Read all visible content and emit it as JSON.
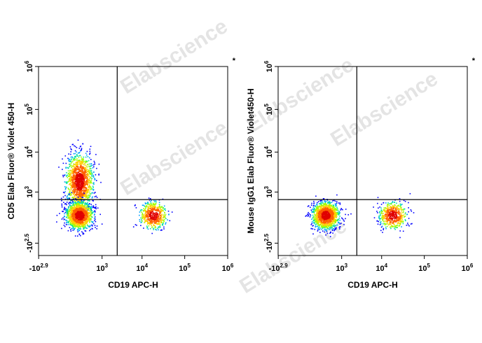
{
  "chart_data": [
    {
      "type": "scatter",
      "title": "",
      "xlabel": "CD19 APC-H",
      "ylabel": "CD5 Elab Fluor® Violet 450-H",
      "corner_mark": "*",
      "x_scale": "biexponential",
      "y_scale": "biexponential",
      "x_ticks": [
        {
          "base": "-10",
          "exp": "2.9"
        },
        {
          "base": "10",
          "exp": "3"
        },
        {
          "base": "10",
          "exp": "4"
        },
        {
          "base": "10",
          "exp": "5"
        },
        {
          "base": "10",
          "exp": "6"
        }
      ],
      "y_ticks": [
        {
          "base": "-10",
          "exp": "2.5"
        },
        {
          "base": "10",
          "exp": "3"
        },
        {
          "base": "10",
          "exp": "4"
        },
        {
          "base": "10",
          "exp": "5"
        },
        {
          "base": "10",
          "exp": "6"
        }
      ],
      "gates": {
        "x": 2500,
        "y": 600
      },
      "populations": [
        {
          "name": "CD5+ CD19-",
          "x_center": 150,
          "y_center": 2000,
          "density": "high"
        },
        {
          "name": "CD5- CD19-",
          "x_center": 150,
          "y_center": 150,
          "density": "high"
        },
        {
          "name": "CD5- CD19+",
          "x_center": 18000,
          "y_center": 150,
          "density": "medium"
        }
      ]
    },
    {
      "type": "scatter",
      "title": "",
      "xlabel": "CD19 APC-H",
      "ylabel": "Mouse IgG1 Elab Fluor® Violet450-H",
      "corner_mark": "*",
      "x_scale": "biexponential",
      "y_scale": "biexponential",
      "x_ticks": [
        {
          "base": "-10",
          "exp": "2.9"
        },
        {
          "base": "10",
          "exp": "3"
        },
        {
          "base": "10",
          "exp": "4"
        },
        {
          "base": "10",
          "exp": "5"
        },
        {
          "base": "10",
          "exp": "6"
        }
      ],
      "y_ticks": [
        {
          "base": "-10",
          "exp": "2.5"
        },
        {
          "base": "10",
          "exp": "3"
        },
        {
          "base": "10",
          "exp": "4"
        },
        {
          "base": "10",
          "exp": "5"
        },
        {
          "base": "10",
          "exp": "6"
        }
      ],
      "gates": {
        "x": 2500,
        "y": 600
      },
      "populations": [
        {
          "name": "IgG1- CD19-",
          "x_center": 300,
          "y_center": 150,
          "density": "high"
        },
        {
          "name": "IgG1- CD19+",
          "x_center": 18000,
          "y_center": 150,
          "density": "medium"
        }
      ]
    }
  ],
  "watermark": "Elabscience",
  "colors": {
    "density_scale": [
      "#0000ff",
      "#00a0ff",
      "#00e0a0",
      "#a0ff00",
      "#ffd000",
      "#ff6000",
      "#e00000"
    ],
    "gate_line": "#000000",
    "watermark": "#cfcfcf"
  }
}
